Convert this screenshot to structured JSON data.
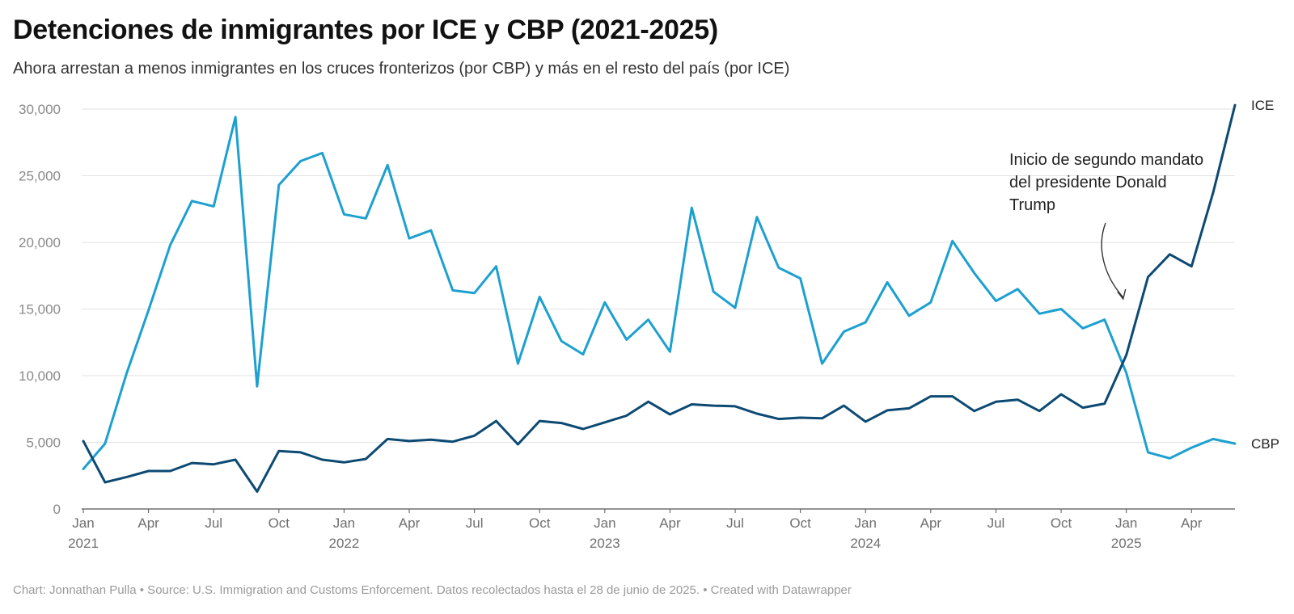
{
  "chart_data": {
    "type": "line",
    "title": "Detenciones de inmigrantes por ICE y CBP (2021-2025)",
    "subtitle": "Ahora arrestan a menos inmigrantes en los cruces fronterizos (por CBP) y más en el resto del país (por ICE)",
    "ylim": [
      0,
      30000
    ],
    "yticks": [
      0,
      5000,
      10000,
      15000,
      20000,
      25000,
      30000
    ],
    "ytick_labels": [
      "0",
      "5,000",
      "10,000",
      "15,000",
      "20,000",
      "25,000",
      "30,000"
    ],
    "xlim": [
      "2021-01",
      "2025-06"
    ],
    "xticks": [
      {
        "month": "2021-01",
        "label": "Jan",
        "year": "2021"
      },
      {
        "month": "2021-04",
        "label": "Apr"
      },
      {
        "month": "2021-07",
        "label": "Jul"
      },
      {
        "month": "2021-10",
        "label": "Oct"
      },
      {
        "month": "2022-01",
        "label": "Jan",
        "year": "2022"
      },
      {
        "month": "2022-04",
        "label": "Apr"
      },
      {
        "month": "2022-07",
        "label": "Jul"
      },
      {
        "month": "2022-10",
        "label": "Oct"
      },
      {
        "month": "2023-01",
        "label": "Jan",
        "year": "2023"
      },
      {
        "month": "2023-04",
        "label": "Apr"
      },
      {
        "month": "2023-07",
        "label": "Jul"
      },
      {
        "month": "2023-10",
        "label": "Oct"
      },
      {
        "month": "2024-01",
        "label": "Jan",
        "year": "2024"
      },
      {
        "month": "2024-04",
        "label": "Apr"
      },
      {
        "month": "2024-07",
        "label": "Jul"
      },
      {
        "month": "2024-10",
        "label": "Oct"
      },
      {
        "month": "2025-01",
        "label": "Jan",
        "year": "2025"
      },
      {
        "month": "2025-04",
        "label": "Apr"
      }
    ],
    "grid": true,
    "x": [
      "2021-01",
      "2021-02",
      "2021-03",
      "2021-04",
      "2021-05",
      "2021-06",
      "2021-07",
      "2021-08",
      "2021-09",
      "2021-10",
      "2021-11",
      "2021-12",
      "2022-01",
      "2022-02",
      "2022-03",
      "2022-04",
      "2022-05",
      "2022-06",
      "2022-07",
      "2022-08",
      "2022-09",
      "2022-10",
      "2022-11",
      "2022-12",
      "2023-01",
      "2023-02",
      "2023-03",
      "2023-04",
      "2023-05",
      "2023-06",
      "2023-07",
      "2023-08",
      "2023-09",
      "2023-10",
      "2023-11",
      "2023-12",
      "2024-01",
      "2024-02",
      "2024-03",
      "2024-04",
      "2024-05",
      "2024-06",
      "2024-07",
      "2024-08",
      "2024-09",
      "2024-10",
      "2024-11",
      "2024-12",
      "2025-01",
      "2025-02",
      "2025-03",
      "2025-04",
      "2025-05",
      "2025-06"
    ],
    "series": [
      {
        "name": "ICE",
        "color": "#0d4a73",
        "values": [
          5100,
          2000,
          2400,
          2850,
          2850,
          3450,
          3350,
          3700,
          1300,
          4350,
          4250,
          3700,
          3500,
          3750,
          5250,
          5100,
          5200,
          5050,
          5500,
          6600,
          4850,
          6600,
          6450,
          6000,
          6500,
          7000,
          8050,
          7100,
          7850,
          7750,
          7700,
          7150,
          6750,
          6850,
          6800,
          7750,
          6550,
          7400,
          7550,
          8450,
          8450,
          7350,
          8050,
          8200,
          7350,
          8600,
          7600,
          7900,
          11550,
          17400,
          19100,
          18200,
          23750,
          30300
        ]
      },
      {
        "name": "CBP",
        "color": "#1da0d0",
        "values": [
          3000,
          4900,
          10200,
          14900,
          19800,
          23100,
          22700,
          29400,
          9200,
          24300,
          26100,
          26700,
          22100,
          21800,
          25800,
          20300,
          20900,
          16400,
          16200,
          18200,
          10900,
          15900,
          12600,
          11600,
          15500,
          12700,
          14200,
          11800,
          22600,
          16300,
          15100,
          21900,
          18100,
          17300,
          10900,
          13300,
          14000,
          17000,
          14500,
          15500,
          20100,
          17700,
          15600,
          16500,
          14650,
          15000,
          13550,
          14200,
          10200,
          4250,
          3800,
          4600,
          5250,
          4900
        ]
      }
    ],
    "annotation": {
      "lines": [
        "Inicio de segundo mandato",
        "del presidente Donald",
        "Trump"
      ],
      "target_month": "2025-01"
    }
  },
  "footer": "Chart: Jonnathan Pulla • Source: U.S. Immigration and Customs Enforcement. Datos recolectados hasta el 28 de junio de 2025. • Created with Datawrapper"
}
